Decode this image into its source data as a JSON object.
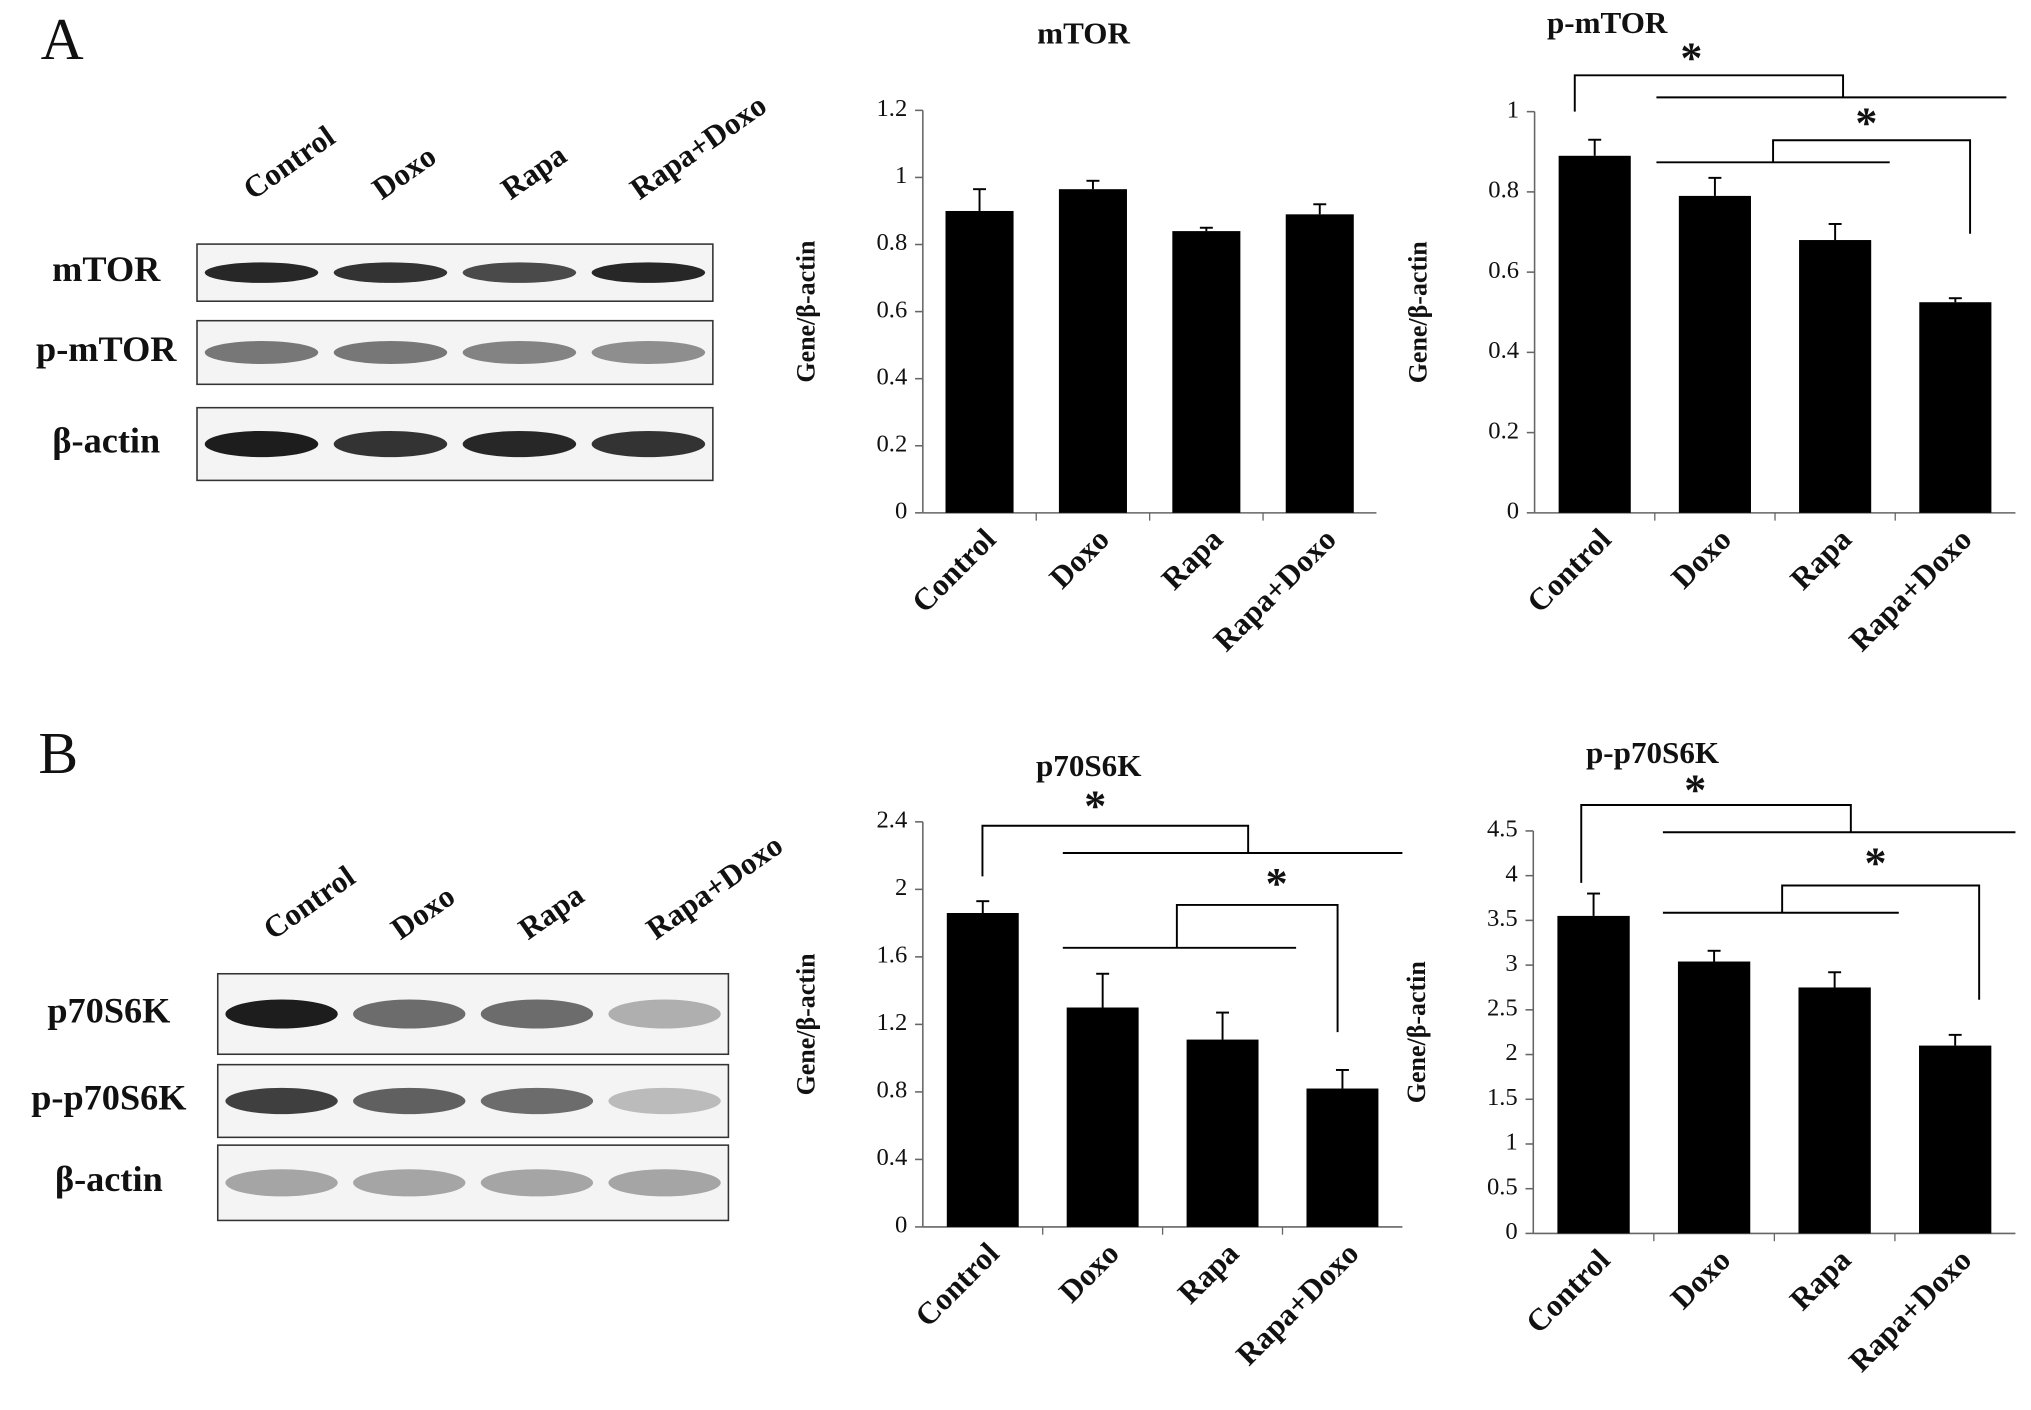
{
  "chart_data": [
    {
      "type": "bar",
      "title": "mTOR",
      "y_label": "Gene/β-actin",
      "categories": [
        "Control",
        "Doxo",
        "Rapa",
        "Rapa+Doxo"
      ],
      "values": [
        0.9,
        0.965,
        0.84,
        0.89
      ],
      "errors": [
        0.065,
        0.025,
        0.01,
        0.03
      ],
      "color": "#000000",
      "ylim": [
        0,
        1.2
      ],
      "yticks": [
        0,
        0.2,
        0.4,
        0.6,
        0.8,
        1,
        1.2
      ],
      "annotations": []
    },
    {
      "type": "bar",
      "title": "p-mTOR",
      "y_label": "Gene/β-actin",
      "categories": [
        "Control",
        "Doxo",
        "Rapa",
        "Rapa+Doxo"
      ],
      "values": [
        0.89,
        0.79,
        0.68,
        0.525
      ],
      "errors": [
        0.04,
        0.045,
        0.04,
        0.01
      ],
      "color": "#000000",
      "ylim": [
        0,
        1
      ],
      "yticks": [
        0,
        0.2,
        0.4,
        0.6,
        0.8,
        1
      ],
      "annotations": [
        "*",
        "*"
      ]
    },
    {
      "type": "bar",
      "title": "p70S6K",
      "y_label": "Gene/β-actin",
      "categories": [
        "Control",
        "Doxo",
        "Rapa",
        "Rapa+Doxo"
      ],
      "values": [
        1.86,
        1.3,
        1.11,
        0.82
      ],
      "errors": [
        0.07,
        0.2,
        0.16,
        0.11
      ],
      "color": "#000000",
      "ylim": [
        0,
        2.4
      ],
      "yticks": [
        0,
        0.4,
        0.8,
        1.2,
        1.6,
        2,
        2.4
      ],
      "annotations": [
        "*",
        "*"
      ]
    },
    {
      "type": "bar",
      "title": "p-p70S6K",
      "y_label": "Gene/β-actin",
      "categories": [
        "Control",
        "Doxo",
        "Rapa",
        "Rapa+Doxo"
      ],
      "values": [
        3.55,
        3.04,
        2.75,
        2.1
      ],
      "errors": [
        0.25,
        0.12,
        0.17,
        0.12
      ],
      "color": "#000000",
      "ylim": [
        0,
        4.5
      ],
      "yticks": [
        0,
        0.5,
        1,
        1.5,
        2,
        2.5,
        3,
        3.5,
        4,
        4.5
      ],
      "annotations": [
        "*",
        "*"
      ]
    }
  ],
  "blots": [
    {
      "panel": "A",
      "lanes": [
        "Control",
        "Doxo",
        "Rapa",
        "Rapa+Doxo"
      ],
      "rows": [
        "mTOR",
        "p-mTOR",
        "β-actin"
      ]
    },
    {
      "panel": "B",
      "lanes": [
        "Control",
        "Doxo",
        "Rapa",
        "Rapa+Doxo"
      ],
      "rows": [
        "p70S6K",
        "p-p70S6K",
        "β-actin"
      ]
    }
  ]
}
